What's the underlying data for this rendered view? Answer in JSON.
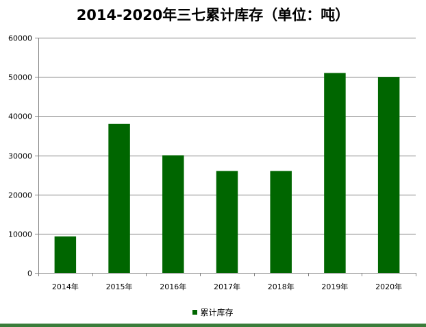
{
  "chart_data": {
    "type": "bar",
    "title": "2014-2020年三七累计库存（单位：吨）",
    "categories": [
      "2014年",
      "2015年",
      "2016年",
      "2017年",
      "2018年",
      "2019年",
      "2020年"
    ],
    "series": [
      {
        "name": "累计库存",
        "values": [
          9300,
          38000,
          30000,
          26000,
          26000,
          51000,
          50000
        ]
      }
    ],
    "xlabel": "",
    "ylabel": "",
    "ylim": [
      0,
      60000
    ],
    "yticks": [
      0,
      10000,
      20000,
      30000,
      40000,
      50000,
      60000
    ],
    "grid": true,
    "legend_position": "bottom",
    "colors": {
      "bar": "#006600",
      "grid": "#808080",
      "axis": "#808080"
    }
  }
}
